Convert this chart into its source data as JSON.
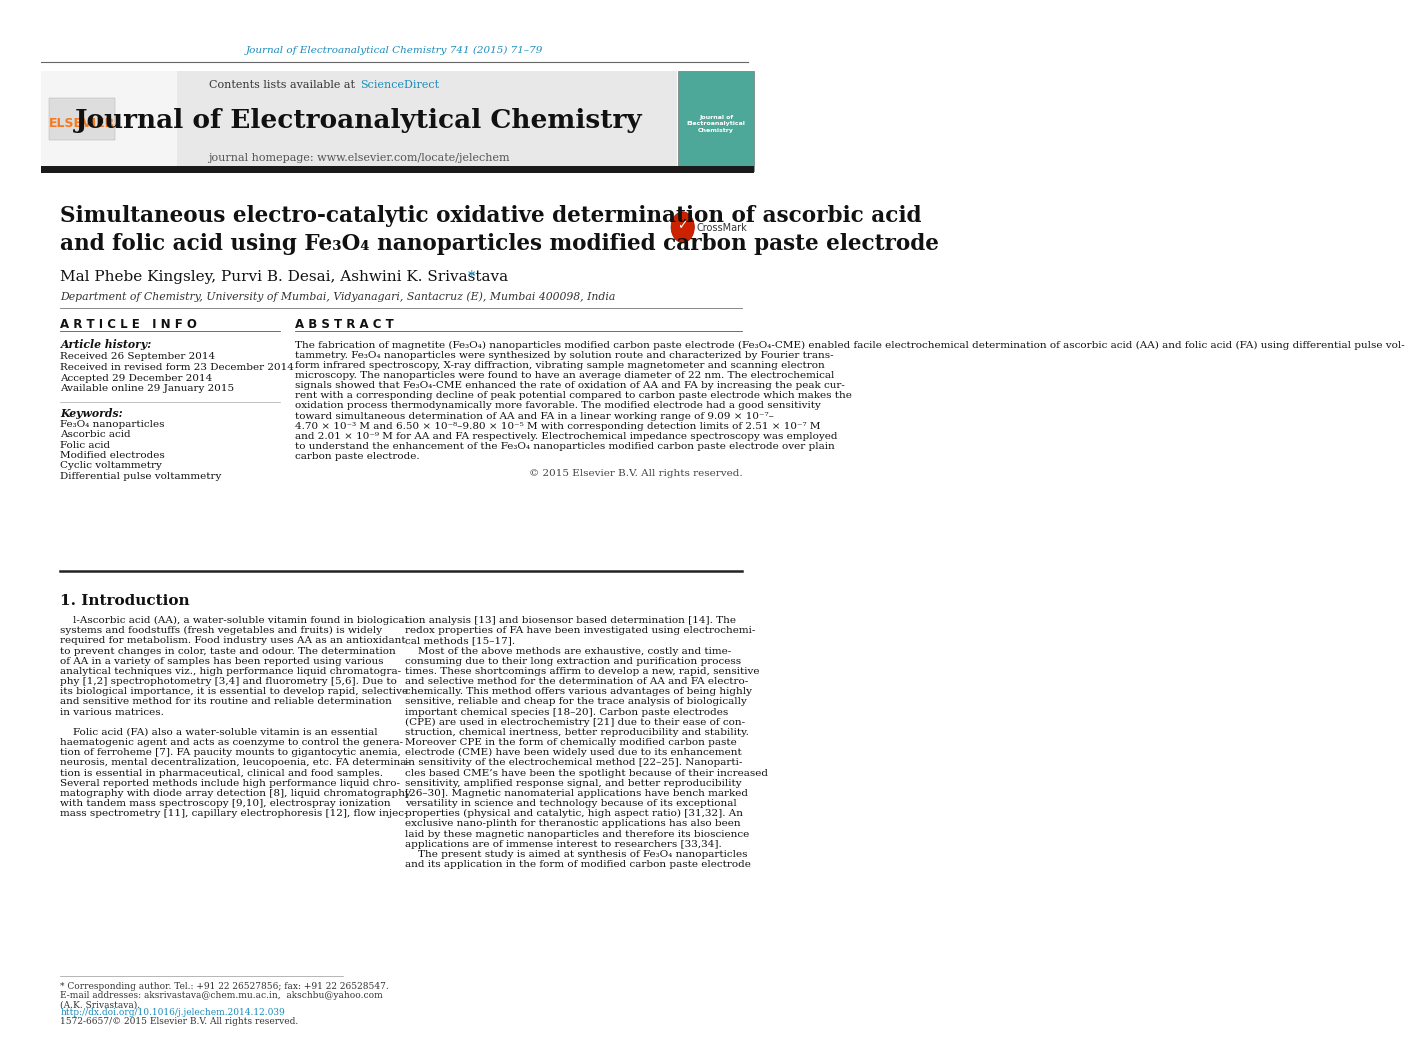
{
  "page_title_ref": "Journal of Electroanalytical Chemistry 741 (2015) 71–79",
  "journal_name": "Journal of Electroanalytical Chemistry",
  "journal_homepage": "journal homepage: www.elsevier.com/locate/jelechem",
  "contents_list": "Contents lists available at ScienceDirect",
  "paper_title_line1": "Simultaneous electro-catalytic oxidative determination of ascorbic acid",
  "paper_title_line2": "and folic acid using Fe₃O₄ nanoparticles modified carbon paste electrode",
  "authors": "Mal Phebe Kingsley, Purvi B. Desai, Ashwini K. Srivastava ",
  "affiliation": "Department of Chemistry, University of Mumbai, Vidyanagari, Santacruz (E), Mumbai 400098, India",
  "section_article_info": "A R T I C L E   I N F O",
  "article_history_label": "Article history:",
  "received": "Received 26 September 2014",
  "received_revised": "Received in revised form 23 December 2014",
  "accepted": "Accepted 29 December 2014",
  "available": "Available online 29 January 2015",
  "keywords_label": "Keywords:",
  "keywords": [
    "Fe₃O₄ nanoparticles",
    "Ascorbic acid",
    "Folic acid",
    "Modified electrodes",
    "Cyclic voltammetry",
    "Differential pulse voltammetry"
  ],
  "section_abstract": "A B S T R A C T",
  "abstract_lines": [
    "The fabrication of magnetite (Fe₃O₄) nanoparticles modified carbon paste electrode (Fe₃O₄-CME) enabled facile electrochemical determination of ascorbic acid (AA) and folic acid (FA) using differential pulse vol-",
    "tammetry. Fe₃O₄ nanoparticles were synthesized by solution route and characterized by Fourier trans-",
    "form infrared spectroscopy, X-ray diffraction, vibrating sample magnetometer and scanning electron",
    "microscopy. The nanoparticles were found to have an average diameter of 22 nm. The electrochemical",
    "signals showed that Fe₃O₄-CME enhanced the rate of oxidation of AA and FA by increasing the peak cur-",
    "rent with a corresponding decline of peak potential compared to carbon paste electrode which makes the",
    "oxidation process thermodynamically more favorable. The modified electrode had a good sensitivity",
    "toward simultaneous determination of AA and FA in a linear working range of 9.09 × 10⁻⁷–",
    "4.70 × 10⁻³ M and 6.50 × 10⁻⁸–9.80 × 10⁻⁵ M with corresponding detection limits of 2.51 × 10⁻⁷ M",
    "and 2.01 × 10⁻⁹ M for AA and FA respectively. Electrochemical impedance spectroscopy was employed",
    "to understand the enhancement of the Fe₃O₄ nanoparticles modified carbon paste electrode over plain",
    "carbon paste electrode."
  ],
  "copyright": "© 2015 Elsevier B.V. All rights reserved.",
  "section1_title": "1. Introduction",
  "col1_intro_lines": [
    "    l-Ascorbic acid (AA), a water-soluble vitamin found in biological",
    "systems and foodstuffs (fresh vegetables and fruits) is widely",
    "required for metabolism. Food industry uses AA as an antioxidant",
    "to prevent changes in color, taste and odour. The determination",
    "of AA in a variety of samples has been reported using various",
    "analytical techniques viz., high performance liquid chromatogra-",
    "phy [1,2] spectrophotometry [3,4] and fluorometry [5,6]. Due to",
    "its biological importance, it is essential to develop rapid, selective",
    "and sensitive method for its routine and reliable determination",
    "in various matrices.",
    "",
    "    Folic acid (FA) also a water-soluble vitamin is an essential",
    "haematogenic agent and acts as coenzyme to control the genera-",
    "tion of ferroheme [7]. FA paucity mounts to gigantocytic anemia,",
    "neurosis, mental decentralization, leucopoenia, etc. FA determina-",
    "tion is essential in pharmaceutical, clinical and food samples.",
    "Several reported methods include high performance liquid chro-",
    "matography with diode array detection [8], liquid chromatography",
    "with tandem mass spectroscopy [9,10], electrospray ionization",
    "mass spectrometry [11], capillary electrophoresis [12], flow injec-"
  ],
  "col2_intro_lines": [
    "tion analysis [13] and biosensor based determination [14]. The",
    "redox properties of FA have been investigated using electrochemi-",
    "cal methods [15–17].",
    "    Most of the above methods are exhaustive, costly and time-",
    "consuming due to their long extraction and purification process",
    "times. These shortcomings affirm to develop a new, rapid, sensitive",
    "and selective method for the determination of AA and FA electro-",
    "chemically. This method offers various advantages of being highly",
    "sensitive, reliable and cheap for the trace analysis of biologically",
    "important chemical species [18–20]. Carbon paste electrodes",
    "(CPE) are used in electrochemistry [21] due to their ease of con-",
    "struction, chemical inertness, better reproducibility and stability.",
    "Moreover CPE in the form of chemically modified carbon paste",
    "electrode (CME) have been widely used due to its enhancement",
    "in sensitivity of the electrochemical method [22–25]. Nanoparti-",
    "cles based CME’s have been the spotlight because of their increased",
    "sensitivity, amplified response signal, and better reproducibility",
    "[26–30]. Magnetic nanomaterial applications have bench marked",
    "versatility in science and technology because of its exceptional",
    "properties (physical and catalytic, high aspect ratio) [31,32]. An",
    "exclusive nano-plinth for theranostic applications has also been",
    "laid by these magnetic nanoparticles and therefore its bioscience",
    "applications are of immense interest to researchers [33,34].",
    "    The present study is aimed at synthesis of Fe₃O₄ nanoparticles",
    "and its application in the form of modified carbon paste electrode"
  ],
  "footer_star": "* Corresponding author. Tel.: +91 22 26527856; fax: +91 22 26528547.",
  "footer_email_line": "E-mail addresses: aksrivastava@chem.mu.ac.in,  akschbu@yahoo.com",
  "footer_initials": "(A.K. Srivastava).",
  "footer_doi": "http://dx.doi.org/10.1016/j.jelechem.2014.12.039",
  "footer_issn": "1572-6657/© 2015 Elsevier B.V. All rights reserved.",
  "bg_color": "#ffffff",
  "header_bar_color": "#1a1a1a",
  "elsevier_color": "#f47920",
  "link_color": "#1a8cbc",
  "title_color": "#111111",
  "section_header_gray": "#e8e8e8",
  "cover_teal": "#4da89a"
}
